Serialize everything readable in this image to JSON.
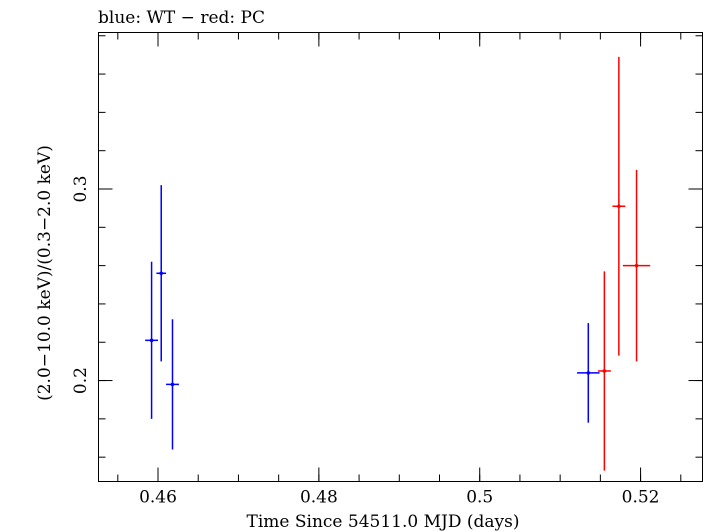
{
  "chart_data": {
    "type": "scatter",
    "title": "blue: WT − red: PC",
    "xlabel": "Time Since 54511.0 MJD (days)",
    "ylabel": "(2.0−10.0 keV)/(0.3−2.0 keV)",
    "xlim": [
      0.4526,
      0.5277
    ],
    "ylim": [
      0.1473,
      0.3817
    ],
    "x_ticks": [
      {
        "value": 0.46,
        "label": "0.46"
      },
      {
        "value": 0.48,
        "label": "0.48"
      },
      {
        "value": 0.5,
        "label": "0.5"
      },
      {
        "value": 0.52,
        "label": "0.52"
      }
    ],
    "x_minor_step": 0.005,
    "y_ticks": [
      {
        "value": 0.2,
        "label": "0.2"
      },
      {
        "value": 0.3,
        "label": "0.3"
      }
    ],
    "y_minor_step": 0.02,
    "grid": false,
    "series": [
      {
        "color": "#0000ff",
        "points": [
          {
            "x": 0.4592,
            "xerr": 0.0008,
            "y": 0.221,
            "yerr_low": 0.041,
            "yerr_high": 0.041
          },
          {
            "x": 0.4604,
            "xerr": 0.0006,
            "y": 0.256,
            "yerr_low": 0.046,
            "yerr_high": 0.046
          },
          {
            "x": 0.4618,
            "xerr": 0.0008,
            "y": 0.198,
            "yerr_low": 0.034,
            "yerr_high": 0.034
          },
          {
            "x": 0.5135,
            "xerr": 0.0014,
            "y": 0.204,
            "yerr_low": 0.026,
            "yerr_high": 0.026
          }
        ]
      },
      {
        "color": "#ff0000",
        "points": [
          {
            "x": 0.5155,
            "xerr": 0.0008,
            "y": 0.205,
            "yerr_low": 0.052,
            "yerr_high": 0.052
          },
          {
            "x": 0.5173,
            "xerr": 0.0008,
            "y": 0.291,
            "yerr_low": 0.078,
            "yerr_high": 0.078
          },
          {
            "x": 0.5195,
            "xerr": 0.0017,
            "y": 0.26,
            "yerr_low": 0.05,
            "yerr_high": 0.05
          }
        ]
      }
    ]
  }
}
